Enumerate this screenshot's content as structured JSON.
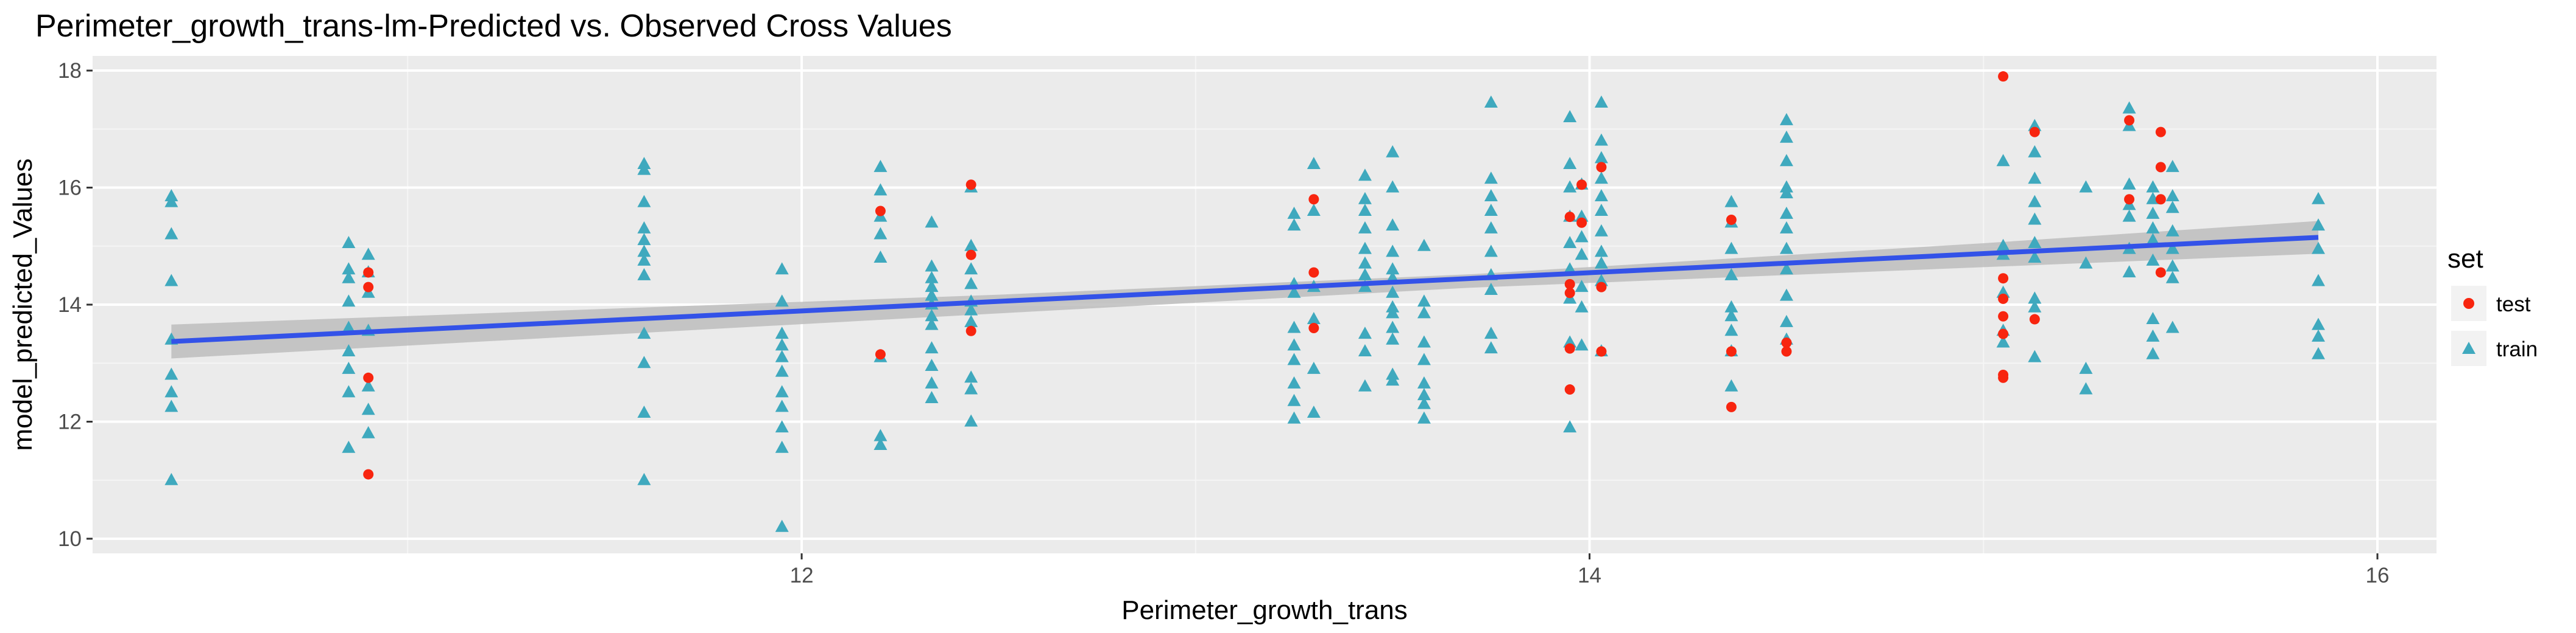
{
  "chart_data": {
    "type": "scatter",
    "title": "Perimeter_growth_trans-lm-Predicted vs. Observed Cross Values",
    "xlabel": "Perimeter_growth_trans",
    "ylabel": "model_predicted_Values",
    "xlim": [
      10.2,
      16.15
    ],
    "ylim": [
      9.75,
      18.25
    ],
    "x_ticks": [
      12,
      14,
      16
    ],
    "x_tick_labels": [
      "12",
      "14",
      "16"
    ],
    "y_ticks": [
      10,
      12,
      14,
      16,
      18
    ],
    "y_tick_labels": [
      "10",
      "12",
      "14",
      "16",
      "18"
    ],
    "grid": true,
    "legend": {
      "title": "set",
      "position": "right",
      "entries": [
        {
          "label": "test",
          "shape": "circle",
          "color": "#F8250F"
        },
        {
          "label": "train",
          "shape": "triangle",
          "color": "#3FA9BE"
        }
      ]
    },
    "fit_line": {
      "method": "lm",
      "color": "#3352E8",
      "band_color": "#BDBDBD",
      "points": [
        [
          10.4,
          13.37
        ],
        [
          15.85,
          15.15
        ]
      ],
      "band": [
        [
          10.4,
          13.08,
          13.66
        ],
        [
          12.5,
          13.85,
          14.17
        ],
        [
          13.7,
          14.29,
          14.52
        ],
        [
          15.0,
          14.64,
          15.05
        ],
        [
          15.85,
          14.87,
          15.43
        ]
      ]
    },
    "series": [
      {
        "name": "test",
        "points": [
          [
            10.9,
            14.55
          ],
          [
            10.9,
            14.3
          ],
          [
            10.9,
            12.75
          ],
          [
            10.9,
            11.1
          ],
          [
            12.2,
            15.6
          ],
          [
            12.2,
            13.15
          ],
          [
            12.43,
            16.05
          ],
          [
            12.43,
            14.85
          ],
          [
            12.43,
            13.55
          ],
          [
            13.3,
            15.8
          ],
          [
            13.3,
            14.55
          ],
          [
            13.3,
            13.6
          ],
          [
            13.95,
            15.5
          ],
          [
            13.95,
            14.35
          ],
          [
            13.95,
            14.2
          ],
          [
            13.95,
            13.25
          ],
          [
            13.95,
            12.55
          ],
          [
            13.98,
            16.05
          ],
          [
            13.98,
            15.4
          ],
          [
            14.03,
            16.35
          ],
          [
            14.03,
            14.3
          ],
          [
            14.03,
            13.2
          ],
          [
            14.36,
            15.45
          ],
          [
            14.36,
            13.2
          ],
          [
            14.36,
            12.25
          ],
          [
            14.5,
            13.35
          ],
          [
            14.5,
            13.2
          ],
          [
            15.05,
            17.9
          ],
          [
            15.05,
            14.45
          ],
          [
            15.05,
            14.1
          ],
          [
            15.05,
            13.8
          ],
          [
            15.05,
            13.5
          ],
          [
            15.05,
            12.8
          ],
          [
            15.05,
            12.75
          ],
          [
            15.13,
            16.95
          ],
          [
            15.13,
            13.75
          ],
          [
            15.37,
            17.15
          ],
          [
            15.37,
            15.8
          ],
          [
            15.45,
            16.95
          ],
          [
            15.45,
            16.35
          ],
          [
            15.45,
            15.8
          ],
          [
            15.45,
            14.55
          ]
        ]
      },
      {
        "name": "train",
        "points": [
          [
            10.4,
            15.85
          ],
          [
            10.4,
            15.75
          ],
          [
            10.4,
            15.2
          ],
          [
            10.4,
            14.4
          ],
          [
            10.4,
            13.4
          ],
          [
            10.4,
            12.8
          ],
          [
            10.4,
            12.5
          ],
          [
            10.4,
            12.25
          ],
          [
            10.4,
            11.0
          ],
          [
            10.85,
            15.05
          ],
          [
            10.85,
            14.6
          ],
          [
            10.85,
            14.45
          ],
          [
            10.85,
            14.05
          ],
          [
            10.85,
            13.6
          ],
          [
            10.85,
            13.2
          ],
          [
            10.85,
            12.9
          ],
          [
            10.85,
            12.5
          ],
          [
            10.85,
            11.55
          ],
          [
            10.9,
            14.85
          ],
          [
            10.9,
            14.55
          ],
          [
            10.9,
            14.2
          ],
          [
            10.9,
            13.55
          ],
          [
            10.9,
            12.6
          ],
          [
            10.9,
            12.2
          ],
          [
            10.9,
            11.8
          ],
          [
            11.6,
            16.4
          ],
          [
            11.6,
            16.3
          ],
          [
            11.6,
            15.75
          ],
          [
            11.6,
            15.3
          ],
          [
            11.6,
            15.1
          ],
          [
            11.6,
            14.9
          ],
          [
            11.6,
            14.75
          ],
          [
            11.6,
            14.5
          ],
          [
            11.6,
            13.5
          ],
          [
            11.6,
            13.0
          ],
          [
            11.6,
            12.15
          ],
          [
            11.6,
            11.0
          ],
          [
            11.95,
            14.6
          ],
          [
            11.95,
            14.05
          ],
          [
            11.95,
            13.5
          ],
          [
            11.95,
            13.3
          ],
          [
            11.95,
            13.1
          ],
          [
            11.95,
            12.85
          ],
          [
            11.95,
            12.5
          ],
          [
            11.95,
            12.25
          ],
          [
            11.95,
            11.9
          ],
          [
            11.95,
            11.55
          ],
          [
            11.95,
            10.2
          ],
          [
            12.2,
            16.35
          ],
          [
            12.2,
            15.95
          ],
          [
            12.2,
            15.5
          ],
          [
            12.2,
            15.2
          ],
          [
            12.2,
            14.8
          ],
          [
            12.2,
            13.1
          ],
          [
            12.2,
            11.75
          ],
          [
            12.2,
            11.6
          ],
          [
            12.33,
            15.4
          ],
          [
            12.33,
            14.65
          ],
          [
            12.33,
            14.45
          ],
          [
            12.33,
            14.3
          ],
          [
            12.33,
            14.15
          ],
          [
            12.33,
            14.0
          ],
          [
            12.33,
            13.8
          ],
          [
            12.33,
            13.65
          ],
          [
            12.33,
            13.25
          ],
          [
            12.33,
            12.95
          ],
          [
            12.33,
            12.65
          ],
          [
            12.33,
            12.4
          ],
          [
            12.43,
            16.0
          ],
          [
            12.43,
            15.0
          ],
          [
            12.43,
            14.6
          ],
          [
            12.43,
            14.35
          ],
          [
            12.43,
            14.05
          ],
          [
            12.43,
            13.9
          ],
          [
            12.43,
            13.7
          ],
          [
            12.43,
            12.75
          ],
          [
            12.43,
            12.55
          ],
          [
            12.43,
            12.0
          ],
          [
            13.25,
            15.55
          ],
          [
            13.25,
            15.35
          ],
          [
            13.25,
            14.35
          ],
          [
            13.25,
            14.2
          ],
          [
            13.25,
            13.6
          ],
          [
            13.25,
            13.3
          ],
          [
            13.25,
            13.05
          ],
          [
            13.25,
            12.65
          ],
          [
            13.25,
            12.35
          ],
          [
            13.25,
            12.05
          ],
          [
            13.3,
            16.4
          ],
          [
            13.3,
            15.6
          ],
          [
            13.3,
            14.3
          ],
          [
            13.3,
            13.75
          ],
          [
            13.3,
            12.9
          ],
          [
            13.3,
            12.15
          ],
          [
            13.43,
            16.2
          ],
          [
            13.43,
            15.8
          ],
          [
            13.43,
            15.6
          ],
          [
            13.43,
            15.3
          ],
          [
            13.43,
            14.95
          ],
          [
            13.43,
            14.7
          ],
          [
            13.43,
            14.5
          ],
          [
            13.43,
            14.3
          ],
          [
            13.43,
            13.5
          ],
          [
            13.43,
            13.2
          ],
          [
            13.43,
            12.6
          ],
          [
            13.5,
            16.6
          ],
          [
            13.5,
            16.0
          ],
          [
            13.5,
            15.35
          ],
          [
            13.5,
            14.9
          ],
          [
            13.5,
            14.6
          ],
          [
            13.5,
            14.45
          ],
          [
            13.5,
            14.2
          ],
          [
            13.5,
            13.95
          ],
          [
            13.5,
            13.85
          ],
          [
            13.5,
            13.6
          ],
          [
            13.5,
            13.4
          ],
          [
            13.5,
            12.8
          ],
          [
            13.5,
            12.7
          ],
          [
            13.58,
            15.0
          ],
          [
            13.58,
            14.05
          ],
          [
            13.58,
            13.85
          ],
          [
            13.58,
            13.35
          ],
          [
            13.58,
            13.05
          ],
          [
            13.58,
            12.65
          ],
          [
            13.58,
            12.45
          ],
          [
            13.58,
            12.3
          ],
          [
            13.58,
            12.05
          ],
          [
            13.75,
            17.45
          ],
          [
            13.75,
            16.15
          ],
          [
            13.75,
            15.85
          ],
          [
            13.75,
            15.6
          ],
          [
            13.75,
            15.3
          ],
          [
            13.75,
            14.9
          ],
          [
            13.75,
            14.5
          ],
          [
            13.75,
            14.25
          ],
          [
            13.75,
            13.5
          ],
          [
            13.75,
            13.25
          ],
          [
            13.95,
            17.2
          ],
          [
            13.95,
            16.4
          ],
          [
            13.95,
            16.0
          ],
          [
            13.95,
            15.5
          ],
          [
            13.95,
            15.05
          ],
          [
            13.95,
            14.6
          ],
          [
            13.95,
            14.1
          ],
          [
            13.95,
            13.35
          ],
          [
            13.95,
            11.9
          ],
          [
            13.98,
            16.05
          ],
          [
            13.98,
            15.5
          ],
          [
            13.98,
            15.15
          ],
          [
            13.98,
            14.85
          ],
          [
            13.98,
            14.3
          ],
          [
            13.98,
            13.95
          ],
          [
            13.98,
            13.3
          ],
          [
            14.03,
            17.45
          ],
          [
            14.03,
            16.8
          ],
          [
            14.03,
            16.5
          ],
          [
            14.03,
            16.15
          ],
          [
            14.03,
            15.85
          ],
          [
            14.03,
            15.6
          ],
          [
            14.03,
            15.25
          ],
          [
            14.03,
            14.9
          ],
          [
            14.03,
            14.7
          ],
          [
            14.03,
            14.4
          ],
          [
            14.03,
            13.2
          ],
          [
            14.36,
            15.75
          ],
          [
            14.36,
            15.4
          ],
          [
            14.36,
            14.95
          ],
          [
            14.36,
            14.5
          ],
          [
            14.36,
            13.95
          ],
          [
            14.36,
            13.8
          ],
          [
            14.36,
            13.55
          ],
          [
            14.36,
            13.2
          ],
          [
            14.36,
            12.6
          ],
          [
            14.5,
            17.15
          ],
          [
            14.5,
            16.85
          ],
          [
            14.5,
            16.45
          ],
          [
            14.5,
            16.0
          ],
          [
            14.5,
            15.9
          ],
          [
            14.5,
            15.55
          ],
          [
            14.5,
            15.3
          ],
          [
            14.5,
            14.95
          ],
          [
            14.5,
            14.6
          ],
          [
            14.5,
            14.15
          ],
          [
            14.5,
            13.7
          ],
          [
            14.5,
            13.4
          ],
          [
            15.05,
            16.45
          ],
          [
            15.05,
            15.0
          ],
          [
            15.05,
            14.85
          ],
          [
            15.05,
            14.2
          ],
          [
            15.05,
            13.55
          ],
          [
            15.05,
            13.35
          ],
          [
            15.13,
            17.05
          ],
          [
            15.13,
            16.6
          ],
          [
            15.13,
            16.15
          ],
          [
            15.13,
            15.75
          ],
          [
            15.13,
            15.45
          ],
          [
            15.13,
            15.05
          ],
          [
            15.13,
            14.8
          ],
          [
            15.13,
            14.1
          ],
          [
            15.13,
            13.95
          ],
          [
            15.13,
            13.1
          ],
          [
            15.26,
            16.0
          ],
          [
            15.26,
            14.7
          ],
          [
            15.26,
            12.9
          ],
          [
            15.26,
            12.55
          ],
          [
            15.37,
            17.35
          ],
          [
            15.37,
            17.05
          ],
          [
            15.37,
            16.05
          ],
          [
            15.37,
            15.7
          ],
          [
            15.37,
            15.5
          ],
          [
            15.37,
            14.95
          ],
          [
            15.37,
            14.55
          ],
          [
            15.43,
            16.0
          ],
          [
            15.43,
            15.8
          ],
          [
            15.43,
            15.55
          ],
          [
            15.43,
            15.3
          ],
          [
            15.43,
            15.1
          ],
          [
            15.43,
            14.75
          ],
          [
            15.43,
            13.75
          ],
          [
            15.43,
            13.45
          ],
          [
            15.43,
            13.15
          ],
          [
            15.48,
            16.35
          ],
          [
            15.48,
            15.85
          ],
          [
            15.48,
            15.65
          ],
          [
            15.48,
            15.25
          ],
          [
            15.48,
            14.95
          ],
          [
            15.48,
            14.65
          ],
          [
            15.48,
            14.45
          ],
          [
            15.48,
            13.6
          ],
          [
            15.85,
            15.8
          ],
          [
            15.85,
            15.35
          ],
          [
            15.85,
            14.95
          ],
          [
            15.85,
            14.4
          ],
          [
            15.85,
            13.65
          ],
          [
            15.85,
            13.45
          ],
          [
            15.85,
            13.15
          ]
        ]
      }
    ]
  }
}
